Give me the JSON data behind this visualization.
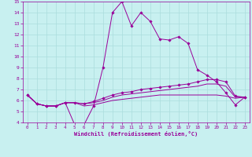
{
  "xlabel": "Windchill (Refroidissement éolien,°C)",
  "ylabel": "",
  "background_color": "#c8f0f0",
  "grid_color": "#aadddd",
  "line_color": "#990099",
  "xlim": [
    -0.5,
    23.5
  ],
  "ylim": [
    4,
    15
  ],
  "xticks": [
    0,
    1,
    2,
    3,
    4,
    5,
    6,
    7,
    8,
    9,
    10,
    11,
    12,
    13,
    14,
    15,
    16,
    17,
    18,
    19,
    20,
    21,
    22,
    23
  ],
  "yticks": [
    4,
    5,
    6,
    7,
    8,
    9,
    10,
    11,
    12,
    13,
    14,
    15
  ],
  "line1_x": [
    0,
    1,
    2,
    3,
    4,
    5,
    6,
    7,
    8,
    9,
    10,
    11,
    12,
    13,
    14,
    15,
    16,
    17,
    18,
    19,
    20,
    21,
    22,
    23
  ],
  "line1_y": [
    6.5,
    5.7,
    5.5,
    5.5,
    5.8,
    3.8,
    3.8,
    5.5,
    9.0,
    14.0,
    15.0,
    12.8,
    14.0,
    13.2,
    11.6,
    11.5,
    11.8,
    11.2,
    8.8,
    8.3,
    7.7,
    6.7,
    5.6,
    6.3
  ],
  "line2_x": [
    0,
    1,
    2,
    3,
    4,
    5,
    6,
    7,
    8,
    9,
    10,
    11,
    12,
    13,
    14,
    15,
    16,
    17,
    18,
    19,
    20,
    21,
    22,
    23
  ],
  "line2_y": [
    6.5,
    5.7,
    5.5,
    5.5,
    5.8,
    5.8,
    5.7,
    5.9,
    6.2,
    6.5,
    6.7,
    6.8,
    7.0,
    7.1,
    7.2,
    7.3,
    7.4,
    7.5,
    7.7,
    7.9,
    7.9,
    7.7,
    6.4,
    6.3
  ],
  "line3_x": [
    0,
    1,
    2,
    3,
    4,
    5,
    6,
    7,
    8,
    9,
    10,
    11,
    12,
    13,
    14,
    15,
    16,
    17,
    18,
    19,
    20,
    21,
    22,
    23
  ],
  "line3_y": [
    6.5,
    5.7,
    5.5,
    5.5,
    5.8,
    5.8,
    5.7,
    5.8,
    6.0,
    6.3,
    6.5,
    6.6,
    6.7,
    6.8,
    6.9,
    7.0,
    7.1,
    7.2,
    7.3,
    7.5,
    7.5,
    7.3,
    6.3,
    6.3
  ],
  "line4_x": [
    0,
    1,
    2,
    3,
    4,
    5,
    6,
    7,
    8,
    9,
    10,
    11,
    12,
    13,
    14,
    15,
    16,
    17,
    18,
    19,
    20,
    21,
    22,
    23
  ],
  "line4_y": [
    6.5,
    5.7,
    5.5,
    5.5,
    5.8,
    5.8,
    5.5,
    5.6,
    5.8,
    6.0,
    6.1,
    6.2,
    6.3,
    6.4,
    6.5,
    6.5,
    6.5,
    6.5,
    6.5,
    6.5,
    6.5,
    6.4,
    6.2,
    6.3
  ]
}
